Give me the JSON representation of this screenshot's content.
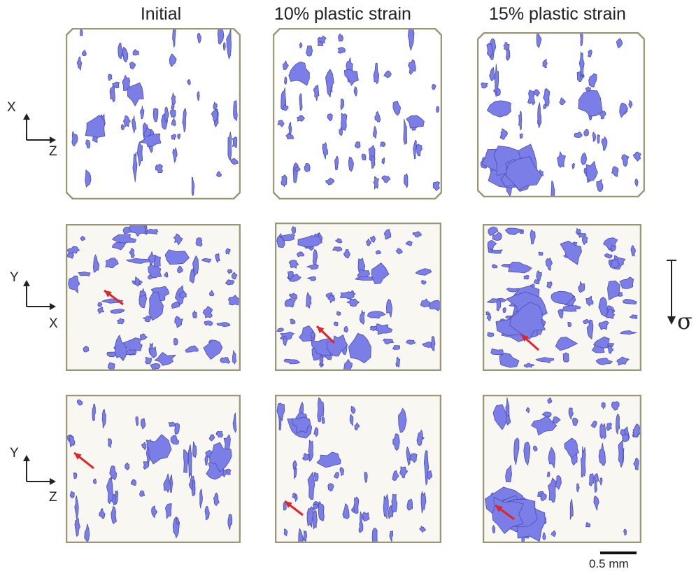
{
  "columns": [
    {
      "title": "Initial"
    },
    {
      "title": "10% plastic strain"
    },
    {
      "title": "15% plastic strain"
    }
  ],
  "rows": [
    {
      "axis_vertical": "X",
      "axis_horizontal": "Z"
    },
    {
      "axis_vertical": "Y",
      "axis_horizontal": "X"
    },
    {
      "axis_vertical": "Y",
      "axis_horizontal": "Z"
    }
  ],
  "stress_symbol": "σ",
  "scale_bar": {
    "label": "0.5 mm"
  },
  "colors": {
    "pore_fill": "#7a7ee6",
    "pore_edge": "#4a4db0",
    "frame": "#9a9677",
    "arrow": "#e0242a",
    "side_bg": "#f8f7f1"
  },
  "icons": {
    "arrow": "red-arrow-icon",
    "axis": "axis-triad-icon"
  }
}
